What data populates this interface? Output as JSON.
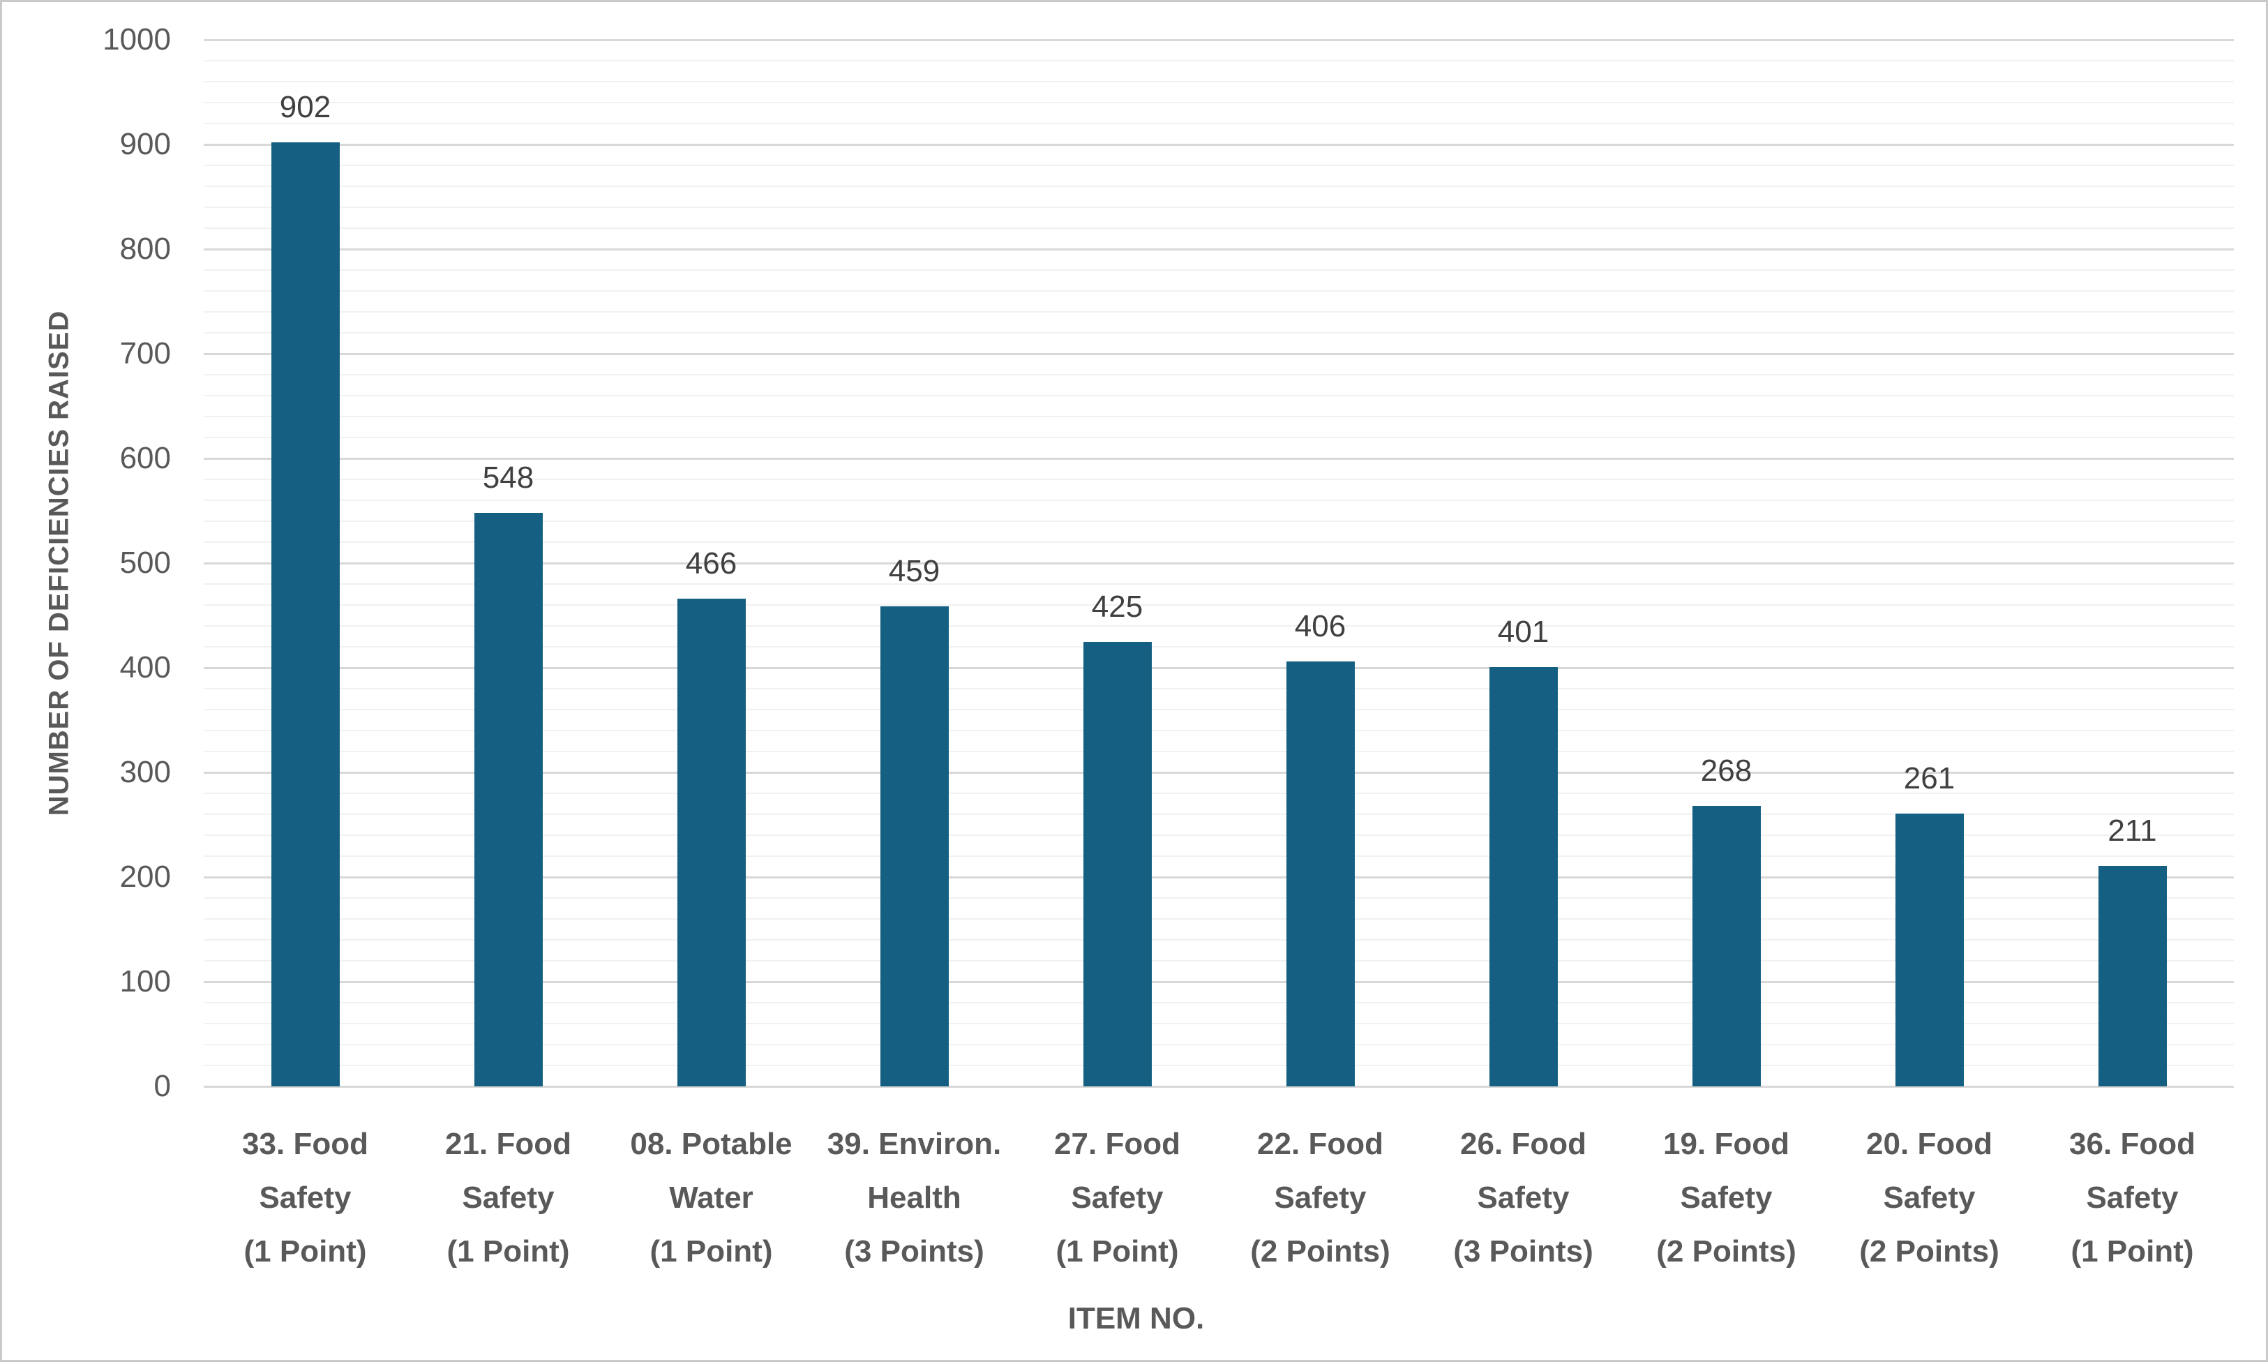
{
  "chart_data": {
    "type": "bar",
    "title": "",
    "xlabel": "ITEM NO.",
    "ylabel": "NUMBER OF DEFICIENCIES RAISED",
    "categories": [
      "33. Food Safety (1 Point)",
      "21. Food Safety (1 Point)",
      "08. Potable Water (1 Point)",
      "39. Environ. Health (3 Points)",
      "27. Food Safety (1 Point)",
      "22. Food Safety (2 Points)",
      "26. Food Safety (3 Points)",
      "19. Food Safety (2 Points)",
      "20. Food Safety (2 Points)",
      "36. Food Safety (1 Point)"
    ],
    "category_lines": [
      [
        "33. Food",
        "Safety",
        "(1 Point)"
      ],
      [
        "21. Food",
        "Safety",
        "(1 Point)"
      ],
      [
        "08. Potable",
        "Water",
        "(1 Point)"
      ],
      [
        "39. Environ.",
        "Health",
        "(3 Points)"
      ],
      [
        "27. Food",
        "Safety",
        "(1 Point)"
      ],
      [
        "22. Food",
        "Safety",
        "(2 Points)"
      ],
      [
        "26. Food",
        "Safety",
        "(3 Points)"
      ],
      [
        "19. Food",
        "Safety",
        "(2 Points)"
      ],
      [
        "20. Food",
        "Safety",
        "(2 Points)"
      ],
      [
        "36. Food",
        "Safety",
        "(1 Point)"
      ]
    ],
    "values": [
      902,
      548,
      466,
      459,
      425,
      406,
      401,
      268,
      261,
      211
    ],
    "data_labels": [
      "902",
      "548",
      "466",
      "459",
      "425",
      "406",
      "401",
      "268",
      "261",
      "211"
    ],
    "ylim": [
      0,
      1000
    ],
    "y_ticks": [
      0,
      100,
      200,
      300,
      400,
      500,
      600,
      700,
      800,
      900,
      1000
    ],
    "y_minor_step": 20,
    "grid": "horizontal major and minor",
    "legend": "none",
    "bar_color": "#156082"
  }
}
